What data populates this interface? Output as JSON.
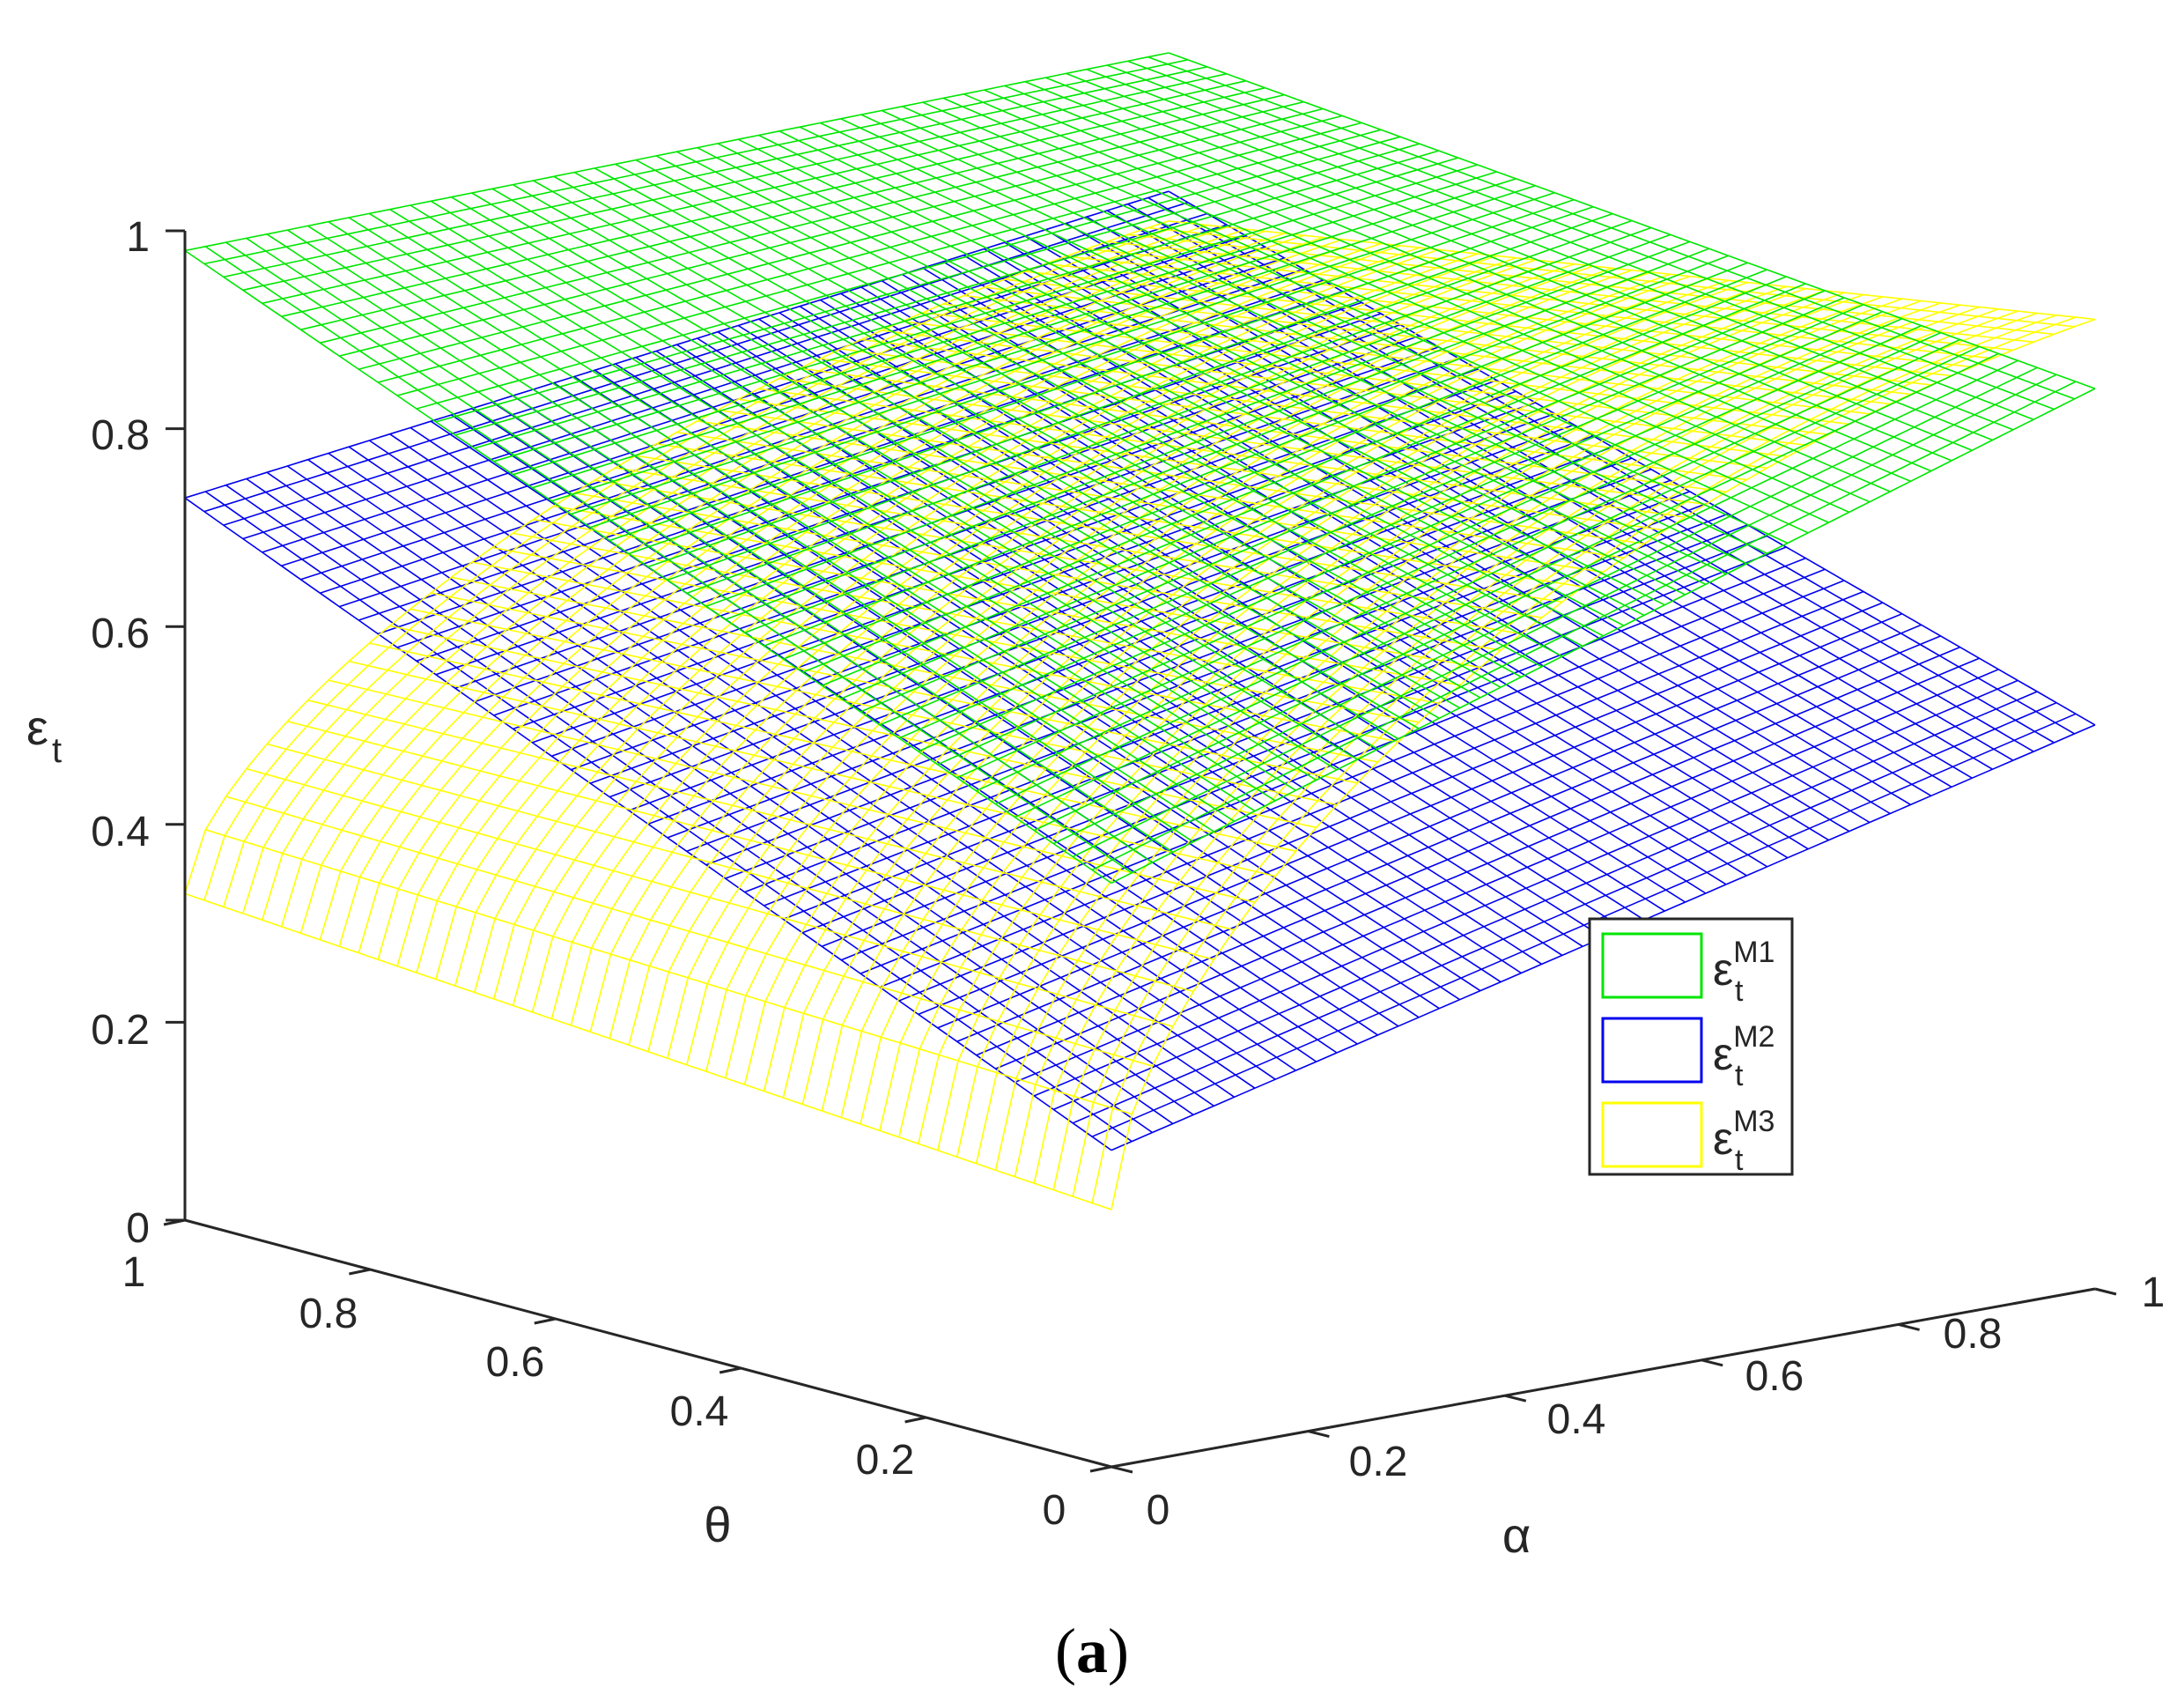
{
  "chart_data": {
    "type": "surface",
    "grid": false,
    "axes": {
      "x": {
        "label": "α",
        "range": [
          0,
          1
        ],
        "ticks": [
          0,
          0.2,
          0.4,
          0.6,
          0.8,
          1
        ],
        "tick_labels": [
          "0",
          "0.2",
          "0.4",
          "0.6",
          "0.8",
          "1"
        ]
      },
      "y": {
        "label": "θ",
        "range": [
          0,
          1
        ],
        "ticks": [
          0,
          0.2,
          0.4,
          0.6,
          0.8,
          1
        ],
        "tick_labels": [
          "0",
          "0.2",
          "0.4",
          "0.6",
          "0.8",
          "1"
        ]
      },
      "z": {
        "label_main": "ε",
        "label_sub": "t",
        "range": [
          0,
          1
        ],
        "ticks": [
          0,
          0.2,
          0.4,
          0.6,
          0.8,
          1
        ],
        "tick_labels": [
          "0",
          "0.2",
          "0.4",
          "0.6",
          "0.8",
          "1"
        ]
      }
    },
    "legend": {
      "placement": "right",
      "entries": [
        {
          "main": "ε",
          "sub": "t",
          "sup": "M1",
          "color": "#00e600"
        },
        {
          "main": "ε",
          "sub": "t",
          "sup": "M2",
          "color": "#0000ee"
        },
        {
          "main": "ε",
          "sub": "t",
          "sup": "M3",
          "color": "#ffff00"
        }
      ]
    },
    "series": [
      {
        "color": "#00e600",
        "corner_values": {
          "a0_t0": 0.59,
          "a1_t0": 0.91,
          "a0_t1": 0.98,
          "a1_t1": 1.0
        }
      },
      {
        "color": "#0000ee",
        "corner_values": {
          "a0_t0": 0.32,
          "a1_t0": 0.57,
          "a0_t1": 0.73,
          "a1_t1": 0.86
        }
      },
      {
        "color": "#ffff00",
        "corner_values": {
          "a0_t0": 0.26,
          "a1_t0": 0.98,
          "a0_t1": 0.33,
          "a1_t1": 0.83
        },
        "curved": true
      }
    ]
  },
  "caption": {
    "open": "(",
    "letter": "a",
    "close": ")"
  }
}
